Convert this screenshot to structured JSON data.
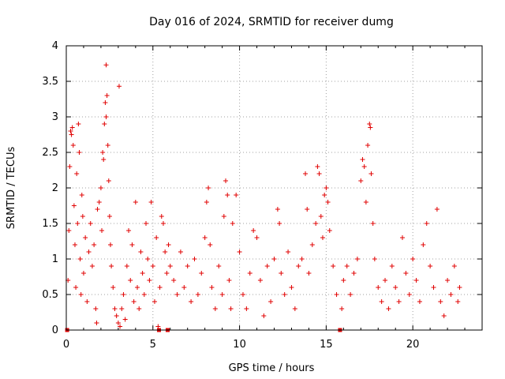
{
  "chart_data": {
    "type": "scatter",
    "title": "Day 016 of 2024, SRMTID for receiver dumg",
    "xlabel": "GPS time / hours",
    "ylabel": "SRMTID / TECUs",
    "xlim": [
      0,
      24
    ],
    "ylim": [
      0,
      4
    ],
    "xticks": [
      "0",
      "5",
      "10",
      "15",
      "20"
    ],
    "xtick_values": [
      0,
      5,
      10,
      15,
      20
    ],
    "yticks": [
      "0",
      "0.5",
      "1",
      "1.5",
      "2",
      "2.5",
      "3",
      "3.5",
      "4"
    ],
    "ytick_values": [
      0,
      0.5,
      1,
      1.5,
      2,
      2.5,
      3,
      3.5,
      4
    ],
    "grid": true,
    "marker": "+",
    "color": "#e00000",
    "series": [
      {
        "name": "SRMTID",
        "points": [
          [
            0.05,
            0.0
          ],
          [
            0.1,
            0.7
          ],
          [
            0.15,
            1.4
          ],
          [
            0.2,
            2.3
          ],
          [
            0.25,
            2.8
          ],
          [
            0.3,
            2.75
          ],
          [
            0.35,
            2.85
          ],
          [
            0.4,
            2.6
          ],
          [
            0.45,
            1.75
          ],
          [
            0.5,
            1.2
          ],
          [
            0.55,
            0.6
          ],
          [
            0.6,
            2.2
          ],
          [
            0.65,
            1.5
          ],
          [
            0.7,
            2.9
          ],
          [
            0.75,
            2.5
          ],
          [
            0.8,
            1.0
          ],
          [
            0.85,
            0.5
          ],
          [
            0.9,
            1.9
          ],
          [
            0.95,
            1.6
          ],
          [
            1.0,
            0.8
          ],
          [
            1.1,
            1.3
          ],
          [
            1.2,
            0.4
          ],
          [
            1.3,
            1.1
          ],
          [
            1.4,
            1.5
          ],
          [
            1.5,
            0.9
          ],
          [
            1.6,
            1.2
          ],
          [
            1.7,
            0.3
          ],
          [
            1.75,
            0.1
          ],
          [
            1.8,
            1.7
          ],
          [
            1.9,
            1.8
          ],
          [
            2.0,
            2.0
          ],
          [
            2.05,
            1.4
          ],
          [
            2.1,
            2.5
          ],
          [
            2.15,
            2.4
          ],
          [
            2.2,
            2.9
          ],
          [
            2.25,
            3.2
          ],
          [
            2.3,
            3.0
          ],
          [
            2.35,
            3.3
          ],
          [
            2.3,
            3.73
          ],
          [
            2.4,
            2.6
          ],
          [
            2.45,
            2.1
          ],
          [
            2.5,
            1.6
          ],
          [
            2.55,
            1.2
          ],
          [
            2.6,
            0.9
          ],
          [
            2.7,
            0.6
          ],
          [
            2.8,
            0.3
          ],
          [
            2.9,
            0.2
          ],
          [
            3.0,
            0.1
          ],
          [
            3.05,
            3.43
          ],
          [
            3.1,
            0.05
          ],
          [
            3.2,
            0.3
          ],
          [
            3.3,
            0.5
          ],
          [
            3.4,
            0.15
          ],
          [
            3.5,
            0.9
          ],
          [
            3.6,
            1.4
          ],
          [
            3.7,
            0.7
          ],
          [
            3.8,
            1.2
          ],
          [
            3.9,
            0.4
          ],
          [
            4.0,
            1.8
          ],
          [
            4.1,
            0.6
          ],
          [
            4.2,
            0.3
          ],
          [
            4.3,
            1.1
          ],
          [
            4.4,
            0.8
          ],
          [
            4.5,
            0.5
          ],
          [
            4.6,
            1.5
          ],
          [
            4.7,
            1.0
          ],
          [
            4.8,
            0.7
          ],
          [
            4.9,
            1.8
          ],
          [
            5.0,
            0.9
          ],
          [
            5.1,
            0.4
          ],
          [
            5.2,
            1.3
          ],
          [
            5.3,
            0.05
          ],
          [
            5.35,
            0.0
          ],
          [
            5.4,
            0.6
          ],
          [
            5.5,
            1.6
          ],
          [
            5.6,
            1.5
          ],
          [
            5.7,
            1.1
          ],
          [
            5.8,
            0.8
          ],
          [
            5.85,
            0.0
          ],
          [
            5.9,
            1.2
          ],
          [
            6.0,
            0.9
          ],
          [
            6.2,
            0.7
          ],
          [
            6.4,
            0.5
          ],
          [
            6.6,
            1.1
          ],
          [
            6.8,
            0.6
          ],
          [
            7.0,
            0.9
          ],
          [
            7.2,
            0.4
          ],
          [
            7.4,
            1.0
          ],
          [
            7.6,
            0.5
          ],
          [
            7.8,
            0.8
          ],
          [
            8.0,
            1.3
          ],
          [
            8.1,
            1.8
          ],
          [
            8.2,
            2.0
          ],
          [
            8.3,
            1.2
          ],
          [
            8.4,
            0.6
          ],
          [
            8.6,
            0.3
          ],
          [
            8.8,
            0.9
          ],
          [
            9.0,
            0.5
          ],
          [
            9.1,
            1.6
          ],
          [
            9.2,
            2.1
          ],
          [
            9.3,
            1.9
          ],
          [
            9.4,
            0.7
          ],
          [
            9.5,
            0.3
          ],
          [
            9.6,
            1.5
          ],
          [
            9.8,
            1.9
          ],
          [
            10.0,
            1.1
          ],
          [
            10.2,
            0.5
          ],
          [
            10.4,
            0.3
          ],
          [
            10.6,
            0.8
          ],
          [
            10.8,
            1.4
          ],
          [
            11.0,
            1.3
          ],
          [
            11.2,
            0.7
          ],
          [
            11.4,
            0.2
          ],
          [
            11.6,
            0.9
          ],
          [
            11.8,
            0.4
          ],
          [
            12.0,
            1.0
          ],
          [
            12.2,
            1.7
          ],
          [
            12.3,
            1.5
          ],
          [
            12.4,
            0.8
          ],
          [
            12.6,
            0.5
          ],
          [
            12.8,
            1.1
          ],
          [
            13.0,
            0.6
          ],
          [
            13.2,
            0.3
          ],
          [
            13.4,
            0.9
          ],
          [
            13.6,
            1.0
          ],
          [
            13.8,
            2.2
          ],
          [
            13.9,
            1.7
          ],
          [
            14.0,
            0.8
          ],
          [
            14.2,
            1.2
          ],
          [
            14.4,
            1.5
          ],
          [
            14.5,
            2.3
          ],
          [
            14.6,
            2.2
          ],
          [
            14.7,
            1.6
          ],
          [
            14.8,
            1.3
          ],
          [
            14.9,
            1.9
          ],
          [
            15.0,
            2.0
          ],
          [
            15.1,
            1.8
          ],
          [
            15.2,
            1.4
          ],
          [
            15.4,
            0.9
          ],
          [
            15.6,
            0.5
          ],
          [
            15.8,
            0.0
          ],
          [
            15.9,
            0.3
          ],
          [
            16.0,
            0.7
          ],
          [
            16.2,
            0.9
          ],
          [
            16.4,
            0.5
          ],
          [
            16.6,
            0.8
          ],
          [
            16.8,
            1.0
          ],
          [
            17.0,
            2.1
          ],
          [
            17.1,
            2.4
          ],
          [
            17.2,
            2.3
          ],
          [
            17.3,
            1.8
          ],
          [
            17.4,
            2.6
          ],
          [
            17.5,
            2.9
          ],
          [
            17.55,
            2.85
          ],
          [
            17.6,
            2.2
          ],
          [
            17.7,
            1.5
          ],
          [
            17.8,
            1.0
          ],
          [
            18.0,
            0.6
          ],
          [
            18.2,
            0.4
          ],
          [
            18.4,
            0.7
          ],
          [
            18.6,
            0.3
          ],
          [
            18.8,
            0.9
          ],
          [
            19.0,
            0.6
          ],
          [
            19.2,
            0.4
          ],
          [
            19.4,
            1.3
          ],
          [
            19.6,
            0.8
          ],
          [
            19.8,
            0.5
          ],
          [
            20.0,
            1.0
          ],
          [
            20.2,
            0.7
          ],
          [
            20.4,
            0.4
          ],
          [
            20.6,
            1.2
          ],
          [
            20.8,
            1.5
          ],
          [
            21.0,
            0.9
          ],
          [
            21.2,
            0.6
          ],
          [
            21.4,
            1.7
          ],
          [
            21.6,
            0.4
          ],
          [
            21.8,
            0.2
          ],
          [
            22.0,
            0.7
          ],
          [
            22.2,
            0.5
          ],
          [
            22.4,
            0.9
          ],
          [
            22.6,
            0.4
          ],
          [
            22.7,
            0.6
          ]
        ]
      }
    ]
  }
}
